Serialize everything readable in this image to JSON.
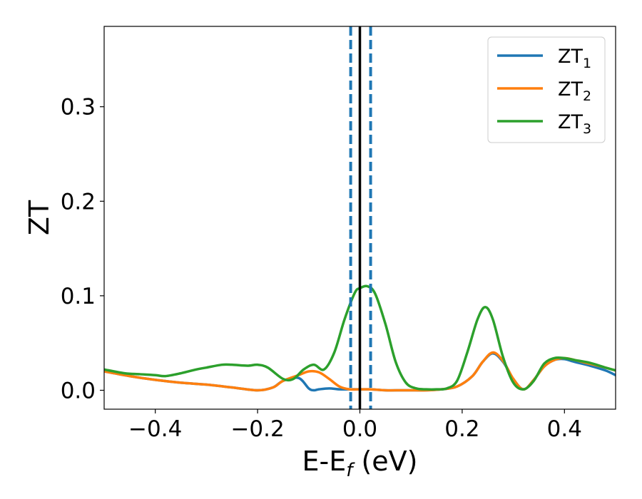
{
  "chart_data": {
    "type": "line",
    "xlabel": "E-E",
    "xlabel_sub": "f",
    "xlabel_unit": " (eV)",
    "ylabel": "ZT",
    "xlim": [
      -0.5,
      0.5
    ],
    "ylim": [
      -0.02,
      0.385
    ],
    "x_ticks": [
      -0.4,
      -0.2,
      0.0,
      0.2,
      0.4
    ],
    "x_tick_labels": [
      "−0.4",
      "−0.2",
      "0.0",
      "0.2",
      "0.4"
    ],
    "y_ticks": [
      0.0,
      0.1,
      0.2,
      0.3
    ],
    "y_tick_labels": [
      "0.0",
      "0.1",
      "0.2",
      "0.3"
    ],
    "grid": false,
    "legend_position": "top-right",
    "vertical_lines": [
      {
        "x": 0.0,
        "style": "solid",
        "color": "#000000"
      },
      {
        "x": -0.018,
        "style": "dashed",
        "color": "#1f77b4"
      },
      {
        "x": 0.021,
        "style": "dashed",
        "color": "#1f77b4"
      }
    ],
    "series": [
      {
        "name": "ZT",
        "sub": "1",
        "color": "#1f77b4",
        "x": [
          -0.5,
          -0.45,
          -0.4,
          -0.35,
          -0.3,
          -0.25,
          -0.2,
          -0.17,
          -0.15,
          -0.12,
          -0.1,
          -0.09,
          -0.08,
          -0.06,
          -0.04,
          -0.02,
          0.0,
          0.02,
          0.05,
          0.08,
          0.1,
          0.13,
          0.16,
          0.19,
          0.22,
          0.24,
          0.26,
          0.28,
          0.3,
          0.32,
          0.34,
          0.36,
          0.38,
          0.4,
          0.42,
          0.45,
          0.48,
          0.5
        ],
        "y": [
          0.02,
          0.015,
          0.011,
          0.008,
          0.006,
          0.003,
          0.0,
          0.003,
          0.01,
          0.013,
          0.002,
          0.0,
          0.001,
          0.002,
          0.001,
          0.001,
          0.001,
          0.001,
          0.0,
          0.0,
          0.0,
          0.0,
          0.001,
          0.004,
          0.015,
          0.03,
          0.039,
          0.03,
          0.012,
          0.001,
          0.011,
          0.025,
          0.032,
          0.033,
          0.03,
          0.026,
          0.021,
          0.016
        ]
      },
      {
        "name": "ZT",
        "sub": "2",
        "color": "#ff7f0e",
        "x": [
          -0.5,
          -0.45,
          -0.4,
          -0.35,
          -0.3,
          -0.25,
          -0.2,
          -0.17,
          -0.15,
          -0.12,
          -0.1,
          -0.08,
          -0.06,
          -0.04,
          -0.02,
          0.0,
          0.02,
          0.05,
          0.08,
          0.1,
          0.13,
          0.16,
          0.19,
          0.22,
          0.24,
          0.26,
          0.28,
          0.3,
          0.32,
          0.34,
          0.36,
          0.38,
          0.4,
          0.42,
          0.45,
          0.48,
          0.5
        ],
        "y": [
          0.02,
          0.015,
          0.011,
          0.008,
          0.006,
          0.003,
          0.0,
          0.003,
          0.01,
          0.016,
          0.02,
          0.019,
          0.012,
          0.004,
          0.001,
          0.001,
          0.001,
          0.0,
          0.0,
          0.0,
          0.0,
          0.001,
          0.004,
          0.015,
          0.03,
          0.04,
          0.031,
          0.012,
          0.001,
          0.011,
          0.025,
          0.032,
          0.034,
          0.032,
          0.028,
          0.024,
          0.021
        ]
      },
      {
        "name": "ZT",
        "sub": "3",
        "color": "#2ca02c",
        "x": [
          -0.5,
          -0.46,
          -0.43,
          -0.4,
          -0.38,
          -0.35,
          -0.32,
          -0.3,
          -0.27,
          -0.25,
          -0.22,
          -0.2,
          -0.18,
          -0.15,
          -0.13,
          -0.11,
          -0.09,
          -0.07,
          -0.05,
          -0.03,
          -0.01,
          0.0,
          0.015,
          0.03,
          0.05,
          0.07,
          0.09,
          0.11,
          0.13,
          0.15,
          0.17,
          0.19,
          0.21,
          0.23,
          0.245,
          0.26,
          0.28,
          0.3,
          0.32,
          0.34,
          0.36,
          0.38,
          0.4,
          0.42,
          0.45,
          0.48,
          0.5
        ],
        "y": [
          0.022,
          0.018,
          0.017,
          0.016,
          0.015,
          0.018,
          0.022,
          0.024,
          0.027,
          0.027,
          0.026,
          0.027,
          0.024,
          0.012,
          0.012,
          0.022,
          0.027,
          0.022,
          0.04,
          0.075,
          0.103,
          0.108,
          0.11,
          0.102,
          0.07,
          0.03,
          0.008,
          0.002,
          0.001,
          0.001,
          0.002,
          0.01,
          0.04,
          0.075,
          0.088,
          0.075,
          0.035,
          0.008,
          0.001,
          0.01,
          0.028,
          0.034,
          0.034,
          0.032,
          0.029,
          0.024,
          0.021
        ]
      }
    ]
  }
}
